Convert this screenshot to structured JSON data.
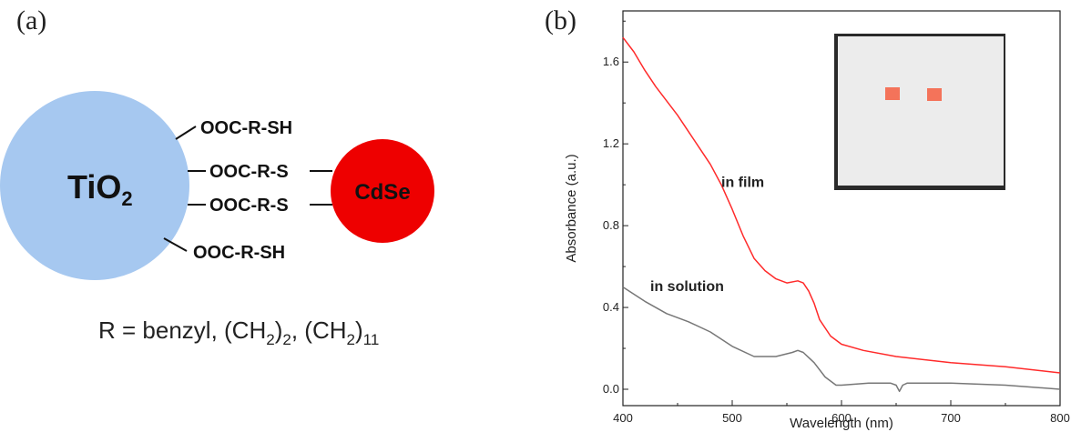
{
  "panel_a": {
    "label": "(a)",
    "tio2_label": "TiO",
    "tio2_sub": "2",
    "cdse_label": "CdSe",
    "ligands": [
      "OOC-R-SH",
      "OOC-R-S",
      "OOC-R-S",
      "OOC-R-SH"
    ],
    "r_definition": {
      "prefix": "R = benzyl, (CH",
      "sub1": "2",
      "mid": ")",
      "sub2": "2",
      "sep": ", (CH",
      "sub3": "2",
      "close": ")",
      "sub4": "11"
    },
    "colors": {
      "tio2": "#a6c8f0",
      "cdse": "#ee0000"
    }
  },
  "panel_b": {
    "label": "(b)"
  },
  "chart_data": {
    "type": "line",
    "title": "",
    "xlabel": "Wavelength (nm)",
    "ylabel": "Absorbance (a.u.)",
    "xlim": [
      400,
      800
    ],
    "ylim": [
      -0.08,
      1.85
    ],
    "xticks": [
      400,
      500,
      600,
      700,
      800
    ],
    "yticks": [
      0.0,
      0.4,
      0.8,
      1.2,
      1.6
    ],
    "ytick_labels": [
      "0.0",
      "0.4",
      "0.8",
      "1.2",
      "1.6"
    ],
    "grid": false,
    "series": [
      {
        "name": "in film",
        "color": "#ff2a2a",
        "x": [
          400,
          410,
          420,
          430,
          440,
          450,
          460,
          470,
          480,
          490,
          500,
          510,
          520,
          530,
          540,
          550,
          560,
          565,
          570,
          575,
          580,
          590,
          600,
          620,
          650,
          700,
          750,
          800
        ],
        "y": [
          1.72,
          1.65,
          1.56,
          1.48,
          1.41,
          1.34,
          1.26,
          1.18,
          1.1,
          1.0,
          0.88,
          0.75,
          0.64,
          0.58,
          0.54,
          0.52,
          0.53,
          0.52,
          0.48,
          0.42,
          0.34,
          0.26,
          0.22,
          0.19,
          0.16,
          0.13,
          0.11,
          0.08
        ]
      },
      {
        "name": "in solution",
        "color": "#777777",
        "x": [
          400,
          420,
          440,
          460,
          480,
          500,
          520,
          540,
          555,
          560,
          565,
          575,
          585,
          595,
          600,
          625,
          645,
          650,
          653,
          656,
          660,
          700,
          750,
          800
        ],
        "y": [
          0.5,
          0.43,
          0.37,
          0.33,
          0.28,
          0.21,
          0.16,
          0.16,
          0.18,
          0.19,
          0.18,
          0.13,
          0.06,
          0.02,
          0.02,
          0.03,
          0.03,
          0.02,
          -0.01,
          0.02,
          0.03,
          0.03,
          0.02,
          0.0
        ]
      }
    ],
    "annotations": [
      {
        "text": "in film",
        "x": 490,
        "y": 0.99
      },
      {
        "text": "in solution",
        "x": 425,
        "y": 0.48
      }
    ],
    "inset": {
      "description_colors": {
        "background": "#2a2a2a",
        "paper": "#ececec",
        "spots": "#f4735a"
      }
    }
  }
}
